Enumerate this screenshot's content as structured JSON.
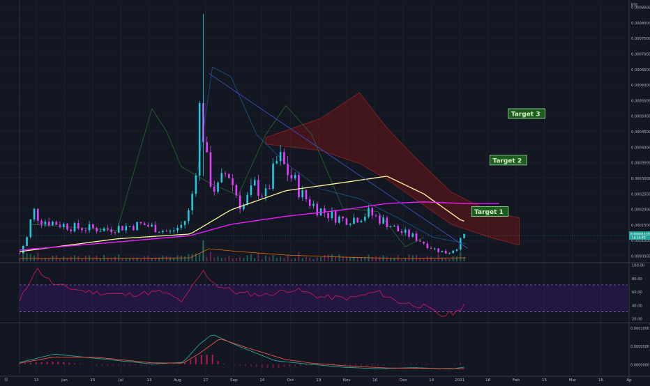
{
  "price_pane": {
    "currency": "BTC",
    "last_price_tag": "0.00001135",
    "last_time_tag": "1d 14:45",
    "targets": [
      "Target 1",
      "Target 2",
      "Target 3"
    ],
    "target_levels": [
      1.9e-05,
      3.5e-05,
      4.95e-05
    ]
  },
  "rsi_pane": {
    "ticks": [
      "100.00",
      "80.00",
      "60.00",
      "40.00",
      "20.00"
    ]
  },
  "macd_pane": {
    "ticks": [
      "0.0001000",
      "0.0000500",
      "0.0000000"
    ]
  },
  "time_axis": {
    "labels": [
      "13",
      "Jun",
      "15",
      "Jul",
      "13",
      "Aug",
      "17",
      "Sep",
      "14",
      "Oct",
      "19",
      "Nov",
      "16",
      "Dec",
      "14",
      "2021",
      "18",
      "Feb",
      "15",
      "Mar",
      "15",
      "Ap"
    ],
    "corner_icon": "settings-icon"
  },
  "colors": {
    "background": "#131722",
    "candle_up": "#26c6da",
    "candle_down": "#e040fb",
    "ma_short": "#fff59d",
    "ma_long": "#e91eff",
    "cloud_bear": "#7b1414",
    "rsi_line": "#c2185b",
    "macd_line": "#26a69a",
    "signal_line": "#ef5350",
    "target_bg": "#1b5e20",
    "target_fg": "#dcedc8"
  },
  "chart_data": [
    {
      "type": "line",
      "pane": "price",
      "ylabel": "BTC",
      "ylim": [
        3.5e-06,
        8.4e-05
      ],
      "y_ticks": [
        "0.0000500",
        "0.0001000",
        "0.0001500",
        "0.0002000",
        "0.0002500",
        "0.0003000",
        "0.0003500",
        "0.0004000",
        "0.0004500",
        "0.0005000",
        "0.0005500",
        "0.0006000",
        "0.0006500",
        "0.0007000",
        "0.0007500",
        "0.0008000",
        "0.0008500"
      ],
      "x_start": "2020-05-09",
      "x_end": "2021-04-05",
      "series": [
        {
          "name": "",
          "style": "candles-close",
          "x": [
            "2020-05-09",
            "2020-05-14",
            "2020-05-16",
            "2020-05-20",
            "2020-05-28",
            "2020-06-08",
            "2020-06-25",
            "2020-07-15",
            "2020-07-30",
            "2020-08-06",
            "2020-08-10",
            "2020-08-14",
            "2020-08-15",
            "2020-08-16",
            "2020-08-18",
            "2020-08-20",
            "2020-08-24",
            "2020-08-30",
            "2020-09-07",
            "2020-09-14",
            "2020-09-20",
            "2020-09-27",
            "2020-10-01",
            "2020-10-06",
            "2020-10-10",
            "2020-10-18",
            "2020-10-25",
            "2020-11-01",
            "2020-11-08",
            "2020-11-15",
            "2020-11-20",
            "2020-11-25",
            "2020-12-01",
            "2020-12-10",
            "2020-12-20",
            "2020-12-28",
            "2021-01-02",
            "2021-01-06"
          ],
          "y": [
            6e-06,
            1.2e-05,
            2e-05,
            1.65e-05,
            1.55e-05,
            1.4e-05,
            1.35e-05,
            1.5e-05,
            1.25e-05,
            1.5e-05,
            2e-05,
            3.8e-05,
            5.1e-05,
            4.9e-05,
            3.8e-05,
            3e-05,
            2.5e-05,
            3.2e-05,
            2e-05,
            2.7e-05,
            2.4e-05,
            3.6e-05,
            3.2e-05,
            2.8e-05,
            2.4e-05,
            2e-05,
            1.8e-05,
            1.65e-05,
            1.7e-05,
            1.85e-05,
            1.7e-05,
            1.55e-05,
            1.3e-05,
            1.1e-05,
            7.5e-06,
            6e-06,
            8e-06,
            1.15e-05
          ]
        },
        {
          "name": "",
          "style": "ma-short",
          "x": [
            "2020-05-09",
            "2020-07-01",
            "2020-08-10",
            "2020-09-01",
            "2020-10-01",
            "2020-11-01",
            "2020-11-25",
            "2020-12-15",
            "2021-01-05"
          ],
          "y": [
            6.5e-06,
            1.05e-05,
            1.2e-05,
            1.95e-05,
            2.55e-05,
            2.8e-05,
            3e-05,
            2.45e-05,
            1.6e-05
          ]
        },
        {
          "name": "",
          "style": "ma-long",
          "x": [
            "2020-05-09",
            "2020-07-01",
            "2020-08-10",
            "2020-09-01",
            "2020-10-01",
            "2020-11-01",
            "2020-11-25",
            "2020-12-15",
            "2021-01-05"
          ],
          "y": [
            7e-06,
            9.5e-06,
            1.15e-05,
            1.5e-05,
            1.75e-05,
            1.95e-05,
            2.15e-05,
            2.2e-05,
            2.15e-05
          ]
        },
        {
          "name": "",
          "style": "trendline",
          "x": [
            "2020-08-20",
            "2021-01-08"
          ],
          "y": [
            6.2e-05,
            7.5e-06
          ]
        }
      ]
    },
    {
      "type": "line",
      "pane": "rsi",
      "ylim": [
        15,
        100
      ],
      "bands": [
        30,
        70
      ],
      "y_ticks": [
        "100.00",
        "80.00",
        "60.00",
        "40.00",
        "20.00"
      ],
      "series": [
        {
          "name": "",
          "x": [
            "2020-05-09",
            "2020-05-18",
            "2020-05-28",
            "2020-06-15",
            "2020-07-05",
            "2020-07-25",
            "2020-08-06",
            "2020-08-14",
            "2020-08-17",
            "2020-08-24",
            "2020-09-05",
            "2020-09-20",
            "2020-10-05",
            "2020-10-20",
            "2020-11-05",
            "2020-11-20",
            "2020-12-01",
            "2020-12-15",
            "2020-12-25",
            "2021-01-02",
            "2021-01-07"
          ],
          "y": [
            45,
            95,
            70,
            60,
            55,
            60,
            45,
            80,
            90,
            70,
            58,
            55,
            64,
            52,
            50,
            60,
            45,
            38,
            24,
            30,
            45
          ]
        }
      ]
    },
    {
      "type": "bar",
      "pane": "macd",
      "ylim": [
        -2.5e-05,
        0.00011
      ],
      "y_ticks": [
        "0.0001000",
        "0.0000500",
        "0.0000000"
      ],
      "series": [
        {
          "name": "",
          "style": "macd-line",
          "x": [
            "2020-05-09",
            "2020-05-28",
            "2020-06-20",
            "2020-07-20",
            "2020-08-06",
            "2020-08-15",
            "2020-08-22",
            "2020-09-05",
            "2020-09-25",
            "2020-10-10",
            "2020-11-01",
            "2020-11-20",
            "2020-12-10",
            "2020-12-30",
            "2021-01-07"
          ],
          "y": [
            5e-06,
            2.8e-05,
            1.6e-05,
            1e-06,
            5e-06,
            5.5e-05,
            8.2e-05,
            5e-05,
            1e-05,
            2e-06,
            -8e-06,
            -1.2e-05,
            -9e-06,
            -1.3e-05,
            -7e-06
          ]
        },
        {
          "name": "",
          "style": "signal-line",
          "x": [
            "2020-05-09",
            "2020-05-28",
            "2020-06-20",
            "2020-07-20",
            "2020-08-06",
            "2020-08-15",
            "2020-08-26",
            "2020-09-10",
            "2020-09-30",
            "2020-10-15",
            "2020-11-05",
            "2020-11-25",
            "2020-12-15",
            "2021-01-05",
            "2021-01-07"
          ],
          "y": [
            3e-06,
            2e-05,
            1.9e-05,
            4e-06,
            3e-06,
            3e-05,
            7e-05,
            4.5e-05,
            1.4e-05,
            3e-06,
            -5e-06,
            -1e-05,
            -1.1e-05,
            -1.2e-05,
            -1.1e-05
          ]
        }
      ]
    }
  ]
}
